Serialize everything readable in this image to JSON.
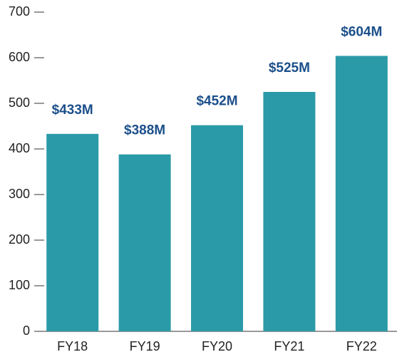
{
  "chart_data": {
    "type": "bar",
    "categories": [
      "FY18",
      "FY19",
      "FY20",
      "FY21",
      "FY22"
    ],
    "values": [
      433,
      388,
      452,
      525,
      604
    ],
    "value_labels": [
      "$433M",
      "$388M",
      "$452M",
      "$525M",
      "$604M"
    ],
    "color": "#2a9aa8",
    "label_color": "#1b4f8a",
    "ylim": [
      0,
      700
    ],
    "yticks": [
      0,
      100,
      200,
      300,
      400,
      500,
      600,
      700
    ],
    "grid": false
  }
}
